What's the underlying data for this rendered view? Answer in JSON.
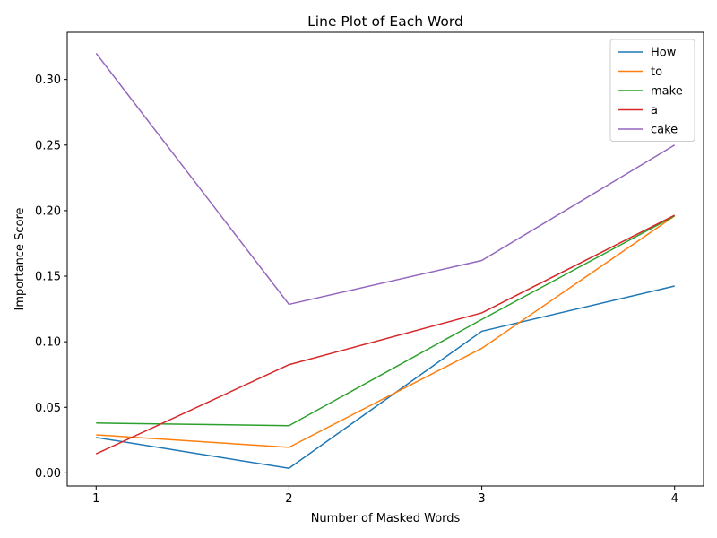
{
  "chart_data": {
    "type": "line",
    "title": "Line Plot of Each Word",
    "xlabel": "Number of Masked Words",
    "ylabel": "Importance Score",
    "x": [
      1,
      2,
      3,
      4
    ],
    "x_tick_labels": [
      "1",
      "2",
      "3",
      "4"
    ],
    "xlim": [
      0.85,
      4.15
    ],
    "ylim": [
      -0.01,
      0.336
    ],
    "y_ticks": [
      0.0,
      0.05,
      0.1,
      0.15,
      0.2,
      0.25,
      0.3
    ],
    "y_tick_labels": [
      "0.00",
      "0.05",
      "0.10",
      "0.15",
      "0.20",
      "0.25",
      "0.30"
    ],
    "grid": false,
    "legend_position": "top-right",
    "series": [
      {
        "name": "How",
        "color": "#1f77b4",
        "values": [
          0.027,
          0.0035,
          0.108,
          0.1425
        ]
      },
      {
        "name": "to",
        "color": "#ff7f0e",
        "values": [
          0.029,
          0.0195,
          0.095,
          0.196
        ]
      },
      {
        "name": "make",
        "color": "#2ca02c",
        "values": [
          0.038,
          0.036,
          0.117,
          0.196
        ]
      },
      {
        "name": "a",
        "color": "#d62728",
        "values": [
          0.0145,
          0.0825,
          0.122,
          0.1965
        ]
      },
      {
        "name": "cake",
        "color": "#9467bd",
        "values": [
          0.32,
          0.1285,
          0.162,
          0.25
        ]
      }
    ]
  }
}
